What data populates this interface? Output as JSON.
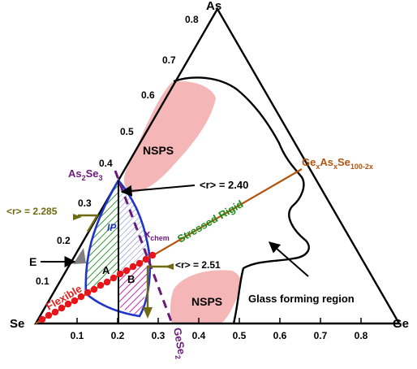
{
  "diagram": {
    "corners": {
      "top": "As",
      "left": "Se",
      "right": "Ge"
    },
    "left_edge_ticks": [
      "0.1",
      "0.2",
      "0.3",
      "0.4",
      "0.5",
      "0.6",
      "0.7",
      "0.8"
    ],
    "bottom_axis_ticks": [
      "0.1",
      "0.2",
      "0.3",
      "0.4",
      "0.5",
      "0.6",
      "0.7",
      "0.8"
    ],
    "regions": {
      "nsps_upper": "NSPS",
      "nsps_lower": "NSPS",
      "glass_forming": "Glass forming region",
      "ip": "IP",
      "zone_a": "A",
      "zone_b": "B"
    },
    "labels": {
      "as2se3": {
        "base": "As",
        "sub1": "2",
        "mid": "Se",
        "sub2": "3"
      },
      "gese2": {
        "base": "GeSe",
        "sub": "2"
      },
      "xchem": {
        "base": "x",
        "sub": "chem"
      },
      "formula": {
        "p1": "Ge",
        "s1": "x",
        "p2": "As",
        "s2": "x",
        "p3": "Se",
        "s3": "100-2x"
      },
      "r240": "<r> = 2.40",
      "r2285": "<r> = 2.285",
      "r251": "<r> = 2.51",
      "e_label": "E",
      "stressed_rigid": "Stressed Rigid",
      "flexible": "Flexible"
    },
    "colors": {
      "triangle": "#000000",
      "nsps_fill": "#f4b6b7",
      "ip_boundary": "#1f34c8",
      "green_hatch": "#1a8a1a",
      "blue_hatch": "#3a47c8",
      "magenta_hatch": "#b41ca8",
      "red_dots": "#e8141c",
      "brown_line": "#b3540e",
      "olive_bracket": "#6f6a12",
      "purple_dash": "#6a1a7a",
      "eutectic_grey": "#808080",
      "flexible_text": "#e02020",
      "stressed_text": "#1a8a1a"
    }
  }
}
